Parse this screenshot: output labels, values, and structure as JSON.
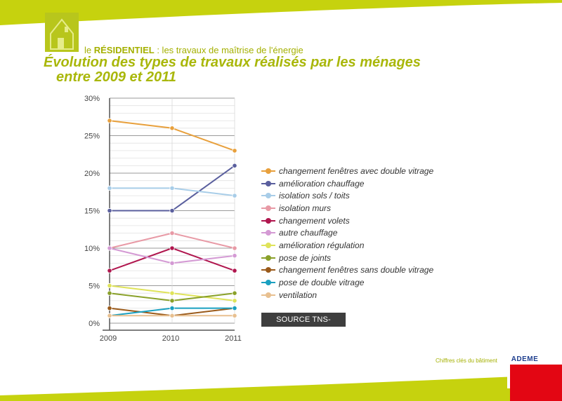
{
  "header": {
    "section_prefix": "le",
    "section_name": "RÉSIDENTIEL",
    "section_suffix": " : les travaux de maîtrise de l'énergie",
    "title_line1": "Évolution des types de travaux réalisés par les ménages",
    "title_line2": "entre 2009 et 2011"
  },
  "colors": {
    "brand_green": "#b8c61c",
    "title_green": "#a9b70a",
    "ademe_red": "#e30613",
    "badge_dark": "#3e3e3e"
  },
  "icons": {
    "logo": "house-icon",
    "ademe_globe": "globe-icon"
  },
  "chart_data": {
    "type": "line",
    "title": "Évolution des types de travaux réalisés par les ménages entre 2009 et 2011",
    "x": [
      "2009",
      "2010",
      "2011"
    ],
    "ylim": [
      0,
      30
    ],
    "yticks": [
      0,
      5,
      10,
      15,
      20,
      25,
      30
    ],
    "ytick_labels": [
      "0%",
      "5%",
      "10%",
      "15%",
      "20%",
      "25%",
      "30%"
    ],
    "grid": true,
    "legend_position": "right",
    "series": [
      {
        "name": "changement fenêtres avec double vitrage",
        "color": "#e8a03c",
        "values": [
          27,
          26,
          23
        ]
      },
      {
        "name": "amélioration chauffage",
        "color": "#5a5f9e",
        "values": [
          15,
          15,
          21
        ]
      },
      {
        "name": "isolation sols / toits",
        "color": "#a8cde8",
        "values": [
          18,
          18,
          17
        ]
      },
      {
        "name": "isolation murs",
        "color": "#e89aa6",
        "values": [
          10,
          12,
          10
        ]
      },
      {
        "name": "changement volets",
        "color": "#b0164e",
        "values": [
          7,
          10,
          7
        ]
      },
      {
        "name": "autre chauffage",
        "color": "#d49ad4",
        "values": [
          10,
          8,
          9
        ]
      },
      {
        "name": "amélioration régulation",
        "color": "#dfe35a",
        "values": [
          5,
          4,
          3
        ]
      },
      {
        "name": "pose de joints",
        "color": "#8aa12a",
        "values": [
          4,
          3,
          4
        ]
      },
      {
        "name": "changement fenêtres sans double vitrage",
        "color": "#9a5a1a",
        "values": [
          2,
          1,
          2
        ]
      },
      {
        "name": "pose de double vitrage",
        "color": "#1aa0c0",
        "values": [
          1,
          2,
          2
        ]
      },
      {
        "name": "ventilation",
        "color": "#e8c090",
        "values": [
          1,
          1,
          1
        ]
      }
    ]
  },
  "source": "SOURCE TNS-SOFRES",
  "footer": {
    "caption": "Chiffres clés du bâtiment",
    "ademe": "ADEME"
  }
}
